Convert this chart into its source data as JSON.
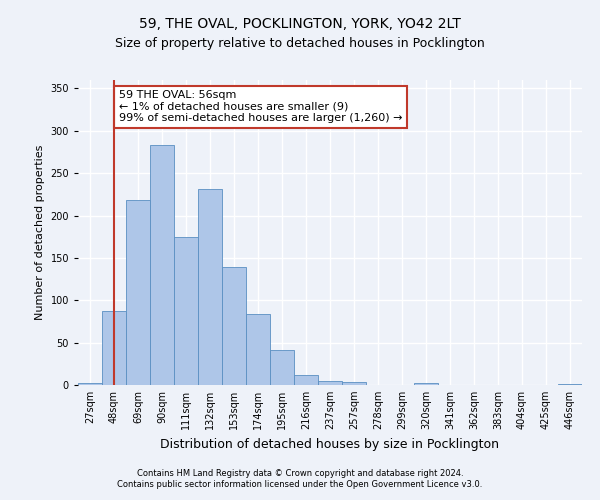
{
  "title1": "59, THE OVAL, POCKLINGTON, YORK, YO42 2LT",
  "title2": "Size of property relative to detached houses in Pocklington",
  "xlabel": "Distribution of detached houses by size in Pocklington",
  "ylabel": "Number of detached properties",
  "categories": [
    "27sqm",
    "48sqm",
    "69sqm",
    "90sqm",
    "111sqm",
    "132sqm",
    "153sqm",
    "174sqm",
    "195sqm",
    "216sqm",
    "237sqm",
    "257sqm",
    "278sqm",
    "299sqm",
    "320sqm",
    "341sqm",
    "362sqm",
    "383sqm",
    "404sqm",
    "425sqm",
    "446sqm"
  ],
  "values": [
    2,
    87,
    218,
    283,
    175,
    231,
    139,
    84,
    41,
    12,
    5,
    4,
    0,
    0,
    2,
    0,
    0,
    0,
    0,
    0,
    1
  ],
  "bar_color": "#aec6e8",
  "bar_edge_color": "#5a8fc2",
  "vline_x": 1,
  "vline_color": "#c0392b",
  "annotation_text": "59 THE OVAL: 56sqm\n← 1% of detached houses are smaller (9)\n99% of semi-detached houses are larger (1,260) →",
  "annotation_box_color": "white",
  "annotation_box_edge": "#c0392b",
  "ylim": [
    0,
    360
  ],
  "yticks": [
    0,
    50,
    100,
    150,
    200,
    250,
    300,
    350
  ],
  "footer1": "Contains HM Land Registry data © Crown copyright and database right 2024.",
  "footer2": "Contains public sector information licensed under the Open Government Licence v3.0.",
  "bg_color": "#eef2f9",
  "grid_color": "white",
  "title1_fontsize": 10,
  "title2_fontsize": 9,
  "ylabel_fontsize": 8,
  "xlabel_fontsize": 9,
  "tick_fontsize": 7,
  "footer_fontsize": 6,
  "annot_fontsize": 8
}
